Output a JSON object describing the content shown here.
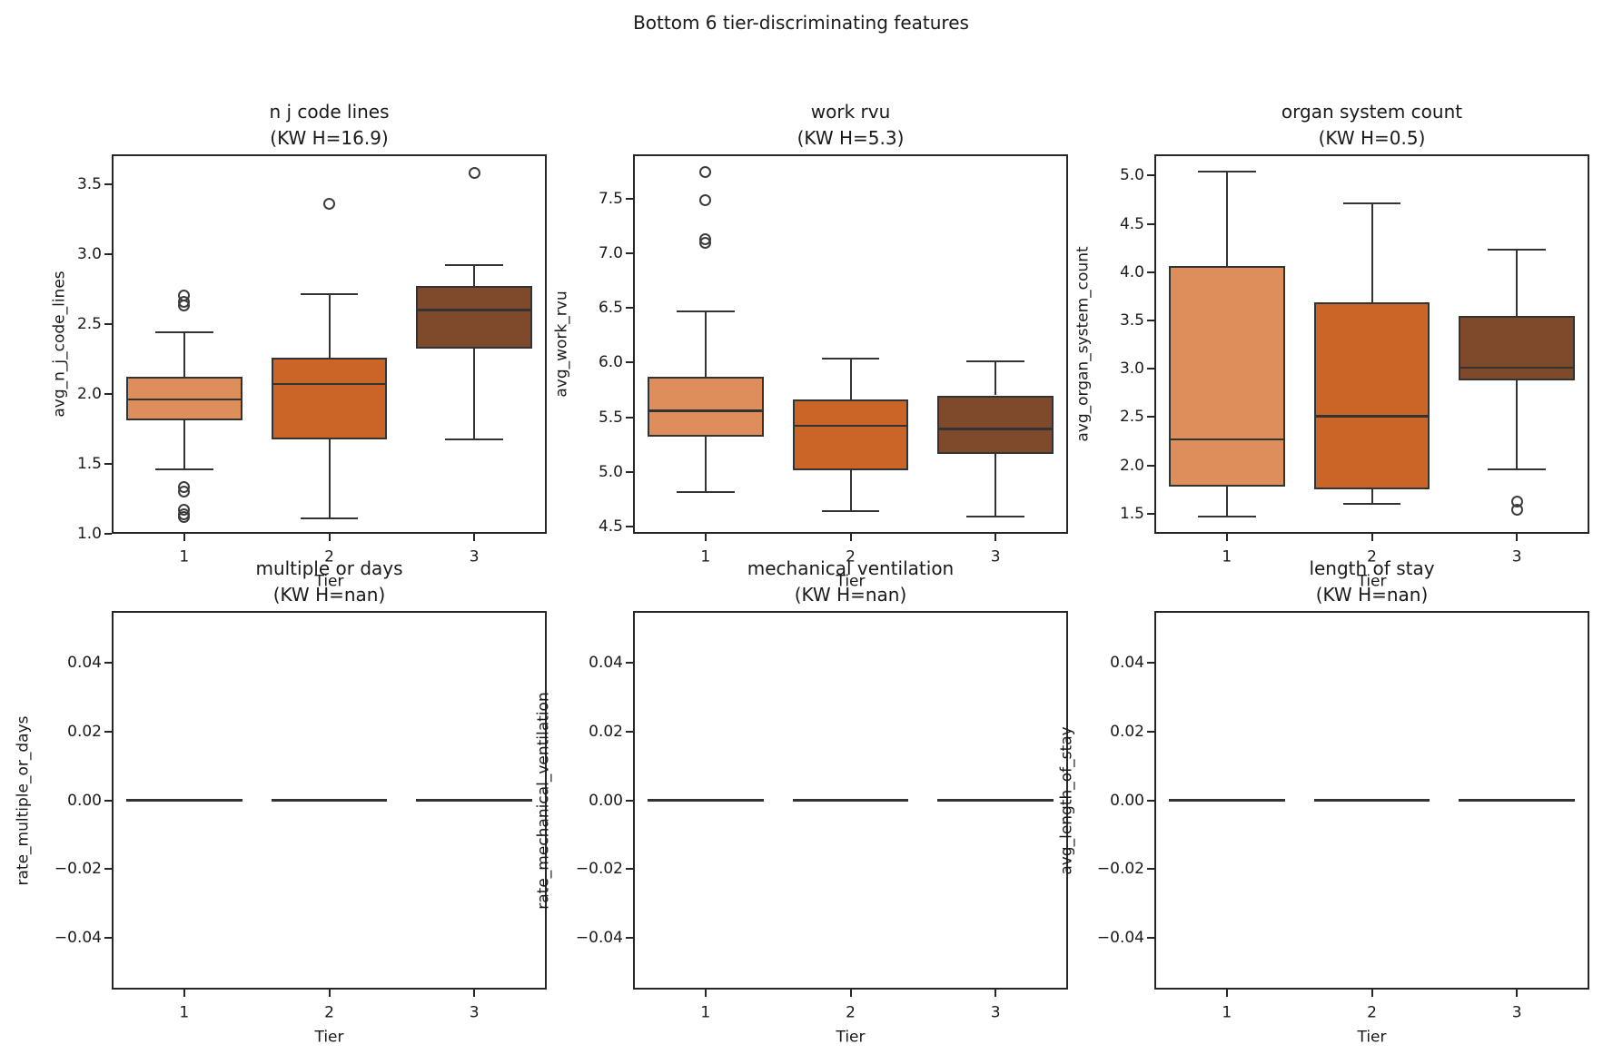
{
  "figure": {
    "suptitle": "Bottom 6 tier-discriminating features",
    "background_color": "#ffffff",
    "text_color": "#1a1a1a",
    "spine_color": "#262626",
    "box_line_color": "#333333",
    "flier_color": "#3d3d3d"
  },
  "chart_data": {
    "type": "boxplot-grid",
    "title": "Bottom 6 tier-discriminating features",
    "grid": "2 rows x 3 cols",
    "categories": [
      "1",
      "2",
      "3"
    ],
    "xlabel": "Tier",
    "legend_position": "none",
    "gridlines": false,
    "tier_colors": [
      "#dd8e5a",
      "#cb6527",
      "#7e4a2b"
    ],
    "subplots": [
      {
        "title": "n j code lines",
        "subtitle": "(KW H=16.9)",
        "kw_h": "16.9",
        "ylabel": "avg_n_j_code_lines",
        "ylim": [
          0.997,
          3.713
        ],
        "yticks": [
          1.0,
          1.5,
          2.0,
          2.5,
          3.0,
          3.5
        ],
        "ytick_labels": [
          "1.0",
          "1.5",
          "2.0",
          "2.5",
          "3.0",
          "3.5"
        ],
        "boxes": [
          {
            "tier": "1",
            "whislo": 1.46,
            "q1": 1.81,
            "med": 1.96,
            "q3": 2.12,
            "whishi": 2.44,
            "fliers": [
              2.7,
              2.66,
              2.63,
              1.33,
              1.3,
              1.17,
              1.14,
              1.12
            ]
          },
          {
            "tier": "2",
            "whislo": 1.11,
            "q1": 1.67,
            "med": 2.07,
            "q3": 2.26,
            "whishi": 2.71,
            "fliers": [
              3.36
            ]
          },
          {
            "tier": "3",
            "whislo": 1.67,
            "q1": 2.32,
            "med": 2.6,
            "q3": 2.77,
            "whishi": 2.92,
            "fliers": [
              3.58
            ]
          }
        ]
      },
      {
        "title": "work rvu",
        "subtitle": "(KW H=5.3)",
        "kw_h": "5.3",
        "ylabel": "avg_work_rvu",
        "ylim": [
          4.43,
          7.91
        ],
        "yticks": [
          4.5,
          5.0,
          5.5,
          6.0,
          6.5,
          7.0,
          7.5
        ],
        "ytick_labels": [
          "4.5",
          "5.0",
          "5.5",
          "6.0",
          "6.5",
          "7.0",
          "7.5"
        ],
        "boxes": [
          {
            "tier": "1",
            "whislo": 4.81,
            "q1": 5.32,
            "med": 5.56,
            "q3": 5.87,
            "whishi": 6.47,
            "fliers": [
              7.75,
              7.49,
              7.13,
              7.1
            ]
          },
          {
            "tier": "2",
            "whislo": 4.64,
            "q1": 5.01,
            "med": 5.42,
            "q3": 5.66,
            "whishi": 6.04,
            "fliers": []
          },
          {
            "tier": "3",
            "whislo": 4.59,
            "q1": 5.16,
            "med": 5.39,
            "q3": 5.7,
            "whishi": 6.01,
            "fliers": []
          }
        ]
      },
      {
        "title": "organ system count",
        "subtitle": "(KW H=0.5)",
        "kw_h": "0.5",
        "ylabel": "avg_organ_system_count",
        "ylim": [
          1.29,
          5.22
        ],
        "yticks": [
          1.5,
          2.0,
          2.5,
          3.0,
          3.5,
          4.0,
          4.5,
          5.0
        ],
        "ytick_labels": [
          "1.5",
          "2.0",
          "2.5",
          "3.0",
          "3.5",
          "4.0",
          "4.5",
          "5.0"
        ],
        "boxes": [
          {
            "tier": "1",
            "whislo": 1.47,
            "q1": 1.78,
            "med": 2.27,
            "q3": 4.06,
            "whishi": 5.04,
            "fliers": []
          },
          {
            "tier": "2",
            "whislo": 1.6,
            "q1": 1.75,
            "med": 2.51,
            "q3": 3.69,
            "whishi": 4.71,
            "fliers": []
          },
          {
            "tier": "3",
            "whislo": 1.96,
            "q1": 2.88,
            "med": 3.01,
            "q3": 3.55,
            "whishi": 4.23,
            "fliers": [
              1.62,
              1.54
            ]
          }
        ]
      },
      {
        "title": "multiple or days",
        "subtitle": "(KW H=nan)",
        "kw_h": "nan",
        "ylabel": "rate_multiple_or_days",
        "ylim": [
          -0.055,
          0.055
        ],
        "yticks": [
          -0.04,
          -0.02,
          0.0,
          0.02,
          0.04
        ],
        "ytick_labels": [
          "−0.04",
          "−0.02",
          "0.00",
          "0.02",
          "0.04"
        ],
        "boxes": [
          {
            "tier": "1",
            "flat": true,
            "med": 0.0
          },
          {
            "tier": "2",
            "flat": true,
            "med": 0.0
          },
          {
            "tier": "3",
            "flat": true,
            "med": 0.0
          }
        ]
      },
      {
        "title": "mechanical ventilation",
        "subtitle": "(KW H=nan)",
        "kw_h": "nan",
        "ylabel": "rate_mechanical_ventilation",
        "ylim": [
          -0.055,
          0.055
        ],
        "yticks": [
          -0.04,
          -0.02,
          0.0,
          0.02,
          0.04
        ],
        "ytick_labels": [
          "−0.04",
          "−0.02",
          "0.00",
          "0.02",
          "0.04"
        ],
        "boxes": [
          {
            "tier": "1",
            "flat": true,
            "med": 0.0
          },
          {
            "tier": "2",
            "flat": true,
            "med": 0.0
          },
          {
            "tier": "3",
            "flat": true,
            "med": 0.0
          }
        ]
      },
      {
        "title": "length of stay",
        "subtitle": "(KW H=nan)",
        "kw_h": "nan",
        "ylabel": "avg_length_of_stay",
        "ylim": [
          -0.055,
          0.055
        ],
        "yticks": [
          -0.04,
          -0.02,
          0.0,
          0.02,
          0.04
        ],
        "ytick_labels": [
          "−0.04",
          "−0.02",
          "0.00",
          "0.02",
          "0.04"
        ],
        "boxes": [
          {
            "tier": "1",
            "flat": true,
            "med": 0.0
          },
          {
            "tier": "2",
            "flat": true,
            "med": 0.0
          },
          {
            "tier": "3",
            "flat": true,
            "med": 0.0
          }
        ]
      }
    ]
  }
}
